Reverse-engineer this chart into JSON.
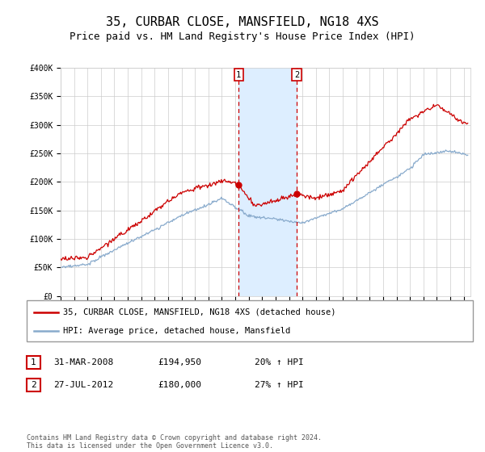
{
  "title": "35, CURBAR CLOSE, MANSFIELD, NG18 4XS",
  "subtitle": "Price paid vs. HM Land Registry's House Price Index (HPI)",
  "ylim": [
    0,
    400000
  ],
  "yticks": [
    0,
    50000,
    100000,
    150000,
    200000,
    250000,
    300000,
    350000,
    400000
  ],
  "ytick_labels": [
    "£0",
    "£50K",
    "£100K",
    "£150K",
    "£200K",
    "£250K",
    "£300K",
    "£350K",
    "£400K"
  ],
  "xlim_start": 1995.0,
  "xlim_end": 2025.5,
  "red_line_color": "#cc0000",
  "blue_line_color": "#88aacc",
  "marker1_x": 2008.25,
  "marker1_y": 194950,
  "marker2_x": 2012.56,
  "marker2_y": 180000,
  "shade_color": "#ddeeff",
  "vline_color": "#cc0000",
  "legend_entry1": "35, CURBAR CLOSE, MANSFIELD, NG18 4XS (detached house)",
  "legend_entry2": "HPI: Average price, detached house, Mansfield",
  "table_row1": [
    "1",
    "31-MAR-2008",
    "£194,950",
    "20% ↑ HPI"
  ],
  "table_row2": [
    "2",
    "27-JUL-2012",
    "£180,000",
    "27% ↑ HPI"
  ],
  "footer": "Contains HM Land Registry data © Crown copyright and database right 2024.\nThis data is licensed under the Open Government Licence v3.0.",
  "bg_color": "#ffffff",
  "grid_color": "#cccccc",
  "title_fontsize": 11,
  "subtitle_fontsize": 9,
  "tick_fontsize": 7,
  "legend_fontsize": 7.5
}
